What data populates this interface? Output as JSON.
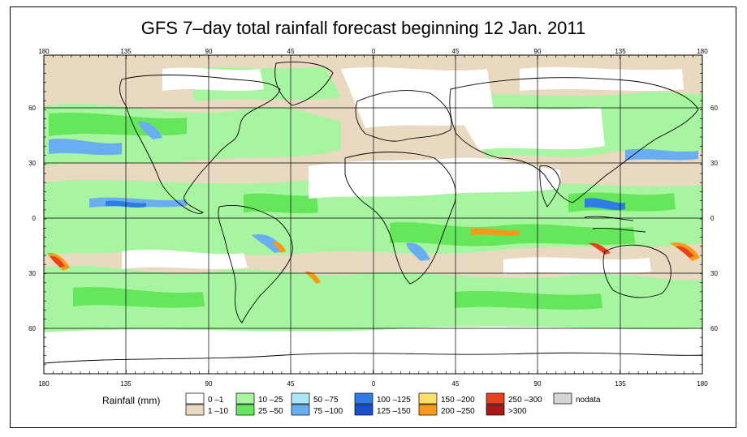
{
  "title": "GFS 7–day total rainfall forecast beginning 12 Jan. 2011",
  "axis": {
    "top_lon_labels": [
      "180",
      "135",
      "90",
      "45",
      "0",
      "45",
      "90",
      "135",
      "180"
    ],
    "bottom_lon_labels": [
      "180",
      "135",
      "90",
      "45",
      "0",
      "45",
      "90",
      "135",
      "180"
    ],
    "left_lat_labels": [
      "60",
      "30",
      "0",
      "30",
      "60"
    ],
    "right_lat_labels": [
      "60",
      "30",
      "0",
      "30",
      "60"
    ]
  },
  "legend": {
    "title": "Rainfall (mm)",
    "items": [
      {
        "label": "0 –1",
        "color": "#ffffff"
      },
      {
        "label": "1 –10",
        "color": "#ead9c1"
      },
      {
        "label": "10 –25",
        "color": "#a7f5a0"
      },
      {
        "label": "25 –50",
        "color": "#66e65a"
      },
      {
        "label": "50 –75",
        "color": "#a8e8f8"
      },
      {
        "label": "75 –100",
        "color": "#6aaef2"
      },
      {
        "label": "100 –125",
        "color": "#2d7ce8"
      },
      {
        "label": "125 –150",
        "color": "#1a4fd0"
      },
      {
        "label": "150 –200",
        "color": "#fde06a"
      },
      {
        "label": "200 –250",
        "color": "#f79a1a"
      },
      {
        "label": "250 –300",
        "color": "#e8401a"
      },
      {
        "label": ">300",
        "color": "#a81818"
      },
      {
        "label": "nodata",
        "color": "#d6d6d6"
      }
    ]
  }
}
